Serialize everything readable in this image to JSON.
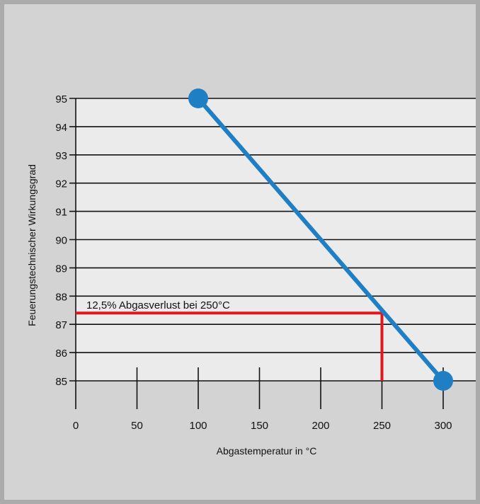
{
  "chart_data": {
    "type": "line",
    "xlabel": "Abgastemperatur in °C",
    "ylabel": "Feuerungstechnischer Wirkungsgrad",
    "xlim": [
      0,
      300
    ],
    "ylim": [
      85,
      95
    ],
    "x_ticks": [
      0,
      50,
      100,
      150,
      200,
      250,
      300
    ],
    "y_ticks": [
      85,
      86,
      87,
      88,
      89,
      90,
      91,
      92,
      93,
      94,
      95
    ],
    "grid": "horizontal",
    "series": [
      {
        "x": [
          100,
          300
        ],
        "y": [
          95,
          85
        ],
        "color": "#1f7fc4",
        "markers": true
      }
    ],
    "annotation": {
      "text": "12,5% Abgasverlust bei 250°C",
      "x": 250,
      "y": 87.4,
      "color": "#e0171f"
    },
    "colors": {
      "plot_background": "#ebebeb",
      "frame_background": "#d3d3d3",
      "outer_background": "#ababab"
    }
  }
}
